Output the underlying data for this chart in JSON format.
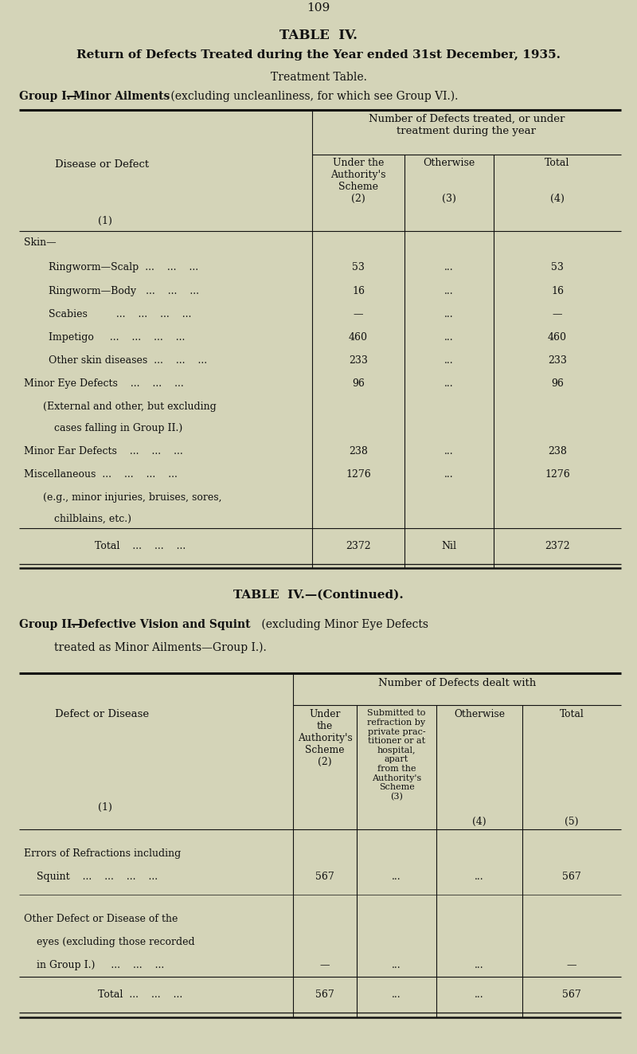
{
  "bg_color": "#d4d4b8",
  "text_color": "#111111",
  "page_number": "109",
  "title1": "TABLE  IV.",
  "title2": "Return of Defects Treated during the Year ended 31st December, 1935.",
  "title3": "Treatment Table.",
  "title4_bold": "Group I.—Minor Ailments",
  "title4_rest": " (excluding uncleanliness, for which see Group VI.).",
  "table1_header_span": "Number of Defects treated, or under\ntreatment during the year",
  "table2_title1": "TABLE  IV.—(Continued).",
  "table2_title2_bold": "Group II.—Defective Vision and Squint",
  "table2_title2_rest1": " (excluding Minor Eye Defects",
  "table2_title2_rest2": "treated as Minor Ailments—Group I.).",
  "table2_header_span": "Number of Defects dealt with"
}
